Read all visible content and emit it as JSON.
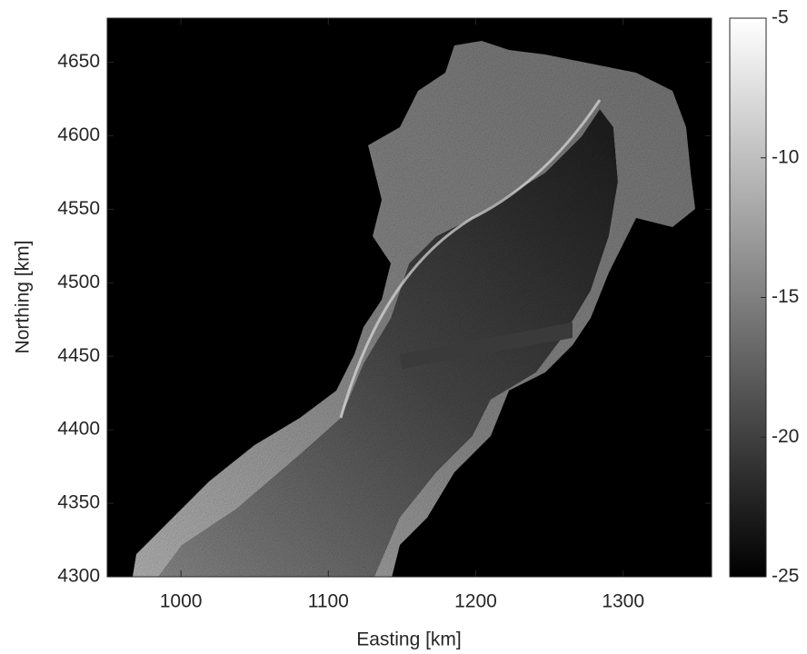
{
  "chart_data": {
    "type": "image",
    "xlabel": "Easting [km]",
    "ylabel": "Northing [km]",
    "xlim": [
      950,
      1360
    ],
    "ylim": [
      4300,
      4680
    ],
    "xticks": [
      1000,
      1100,
      1200,
      1300
    ],
    "yticks": [
      4300,
      4350,
      4400,
      4450,
      4500,
      4550,
      4600,
      4650
    ],
    "colormap": "gray",
    "colorbar": {
      "lim": [
        -25,
        -5
      ],
      "ticks": [
        -25,
        -20,
        -15,
        -10,
        -5
      ]
    }
  }
}
